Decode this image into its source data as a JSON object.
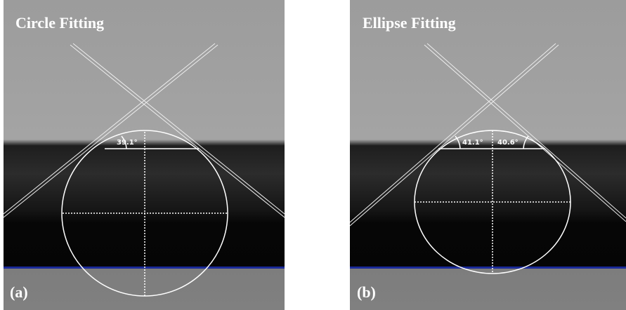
{
  "panels": [
    {
      "title": "Circle Fitting",
      "label": "(a)",
      "angles": [
        "39.1°"
      ]
    },
    {
      "title": "Ellipse Fitting",
      "label": "(b)",
      "angles": [
        "41.1°",
        "40.6°"
      ]
    }
  ]
}
